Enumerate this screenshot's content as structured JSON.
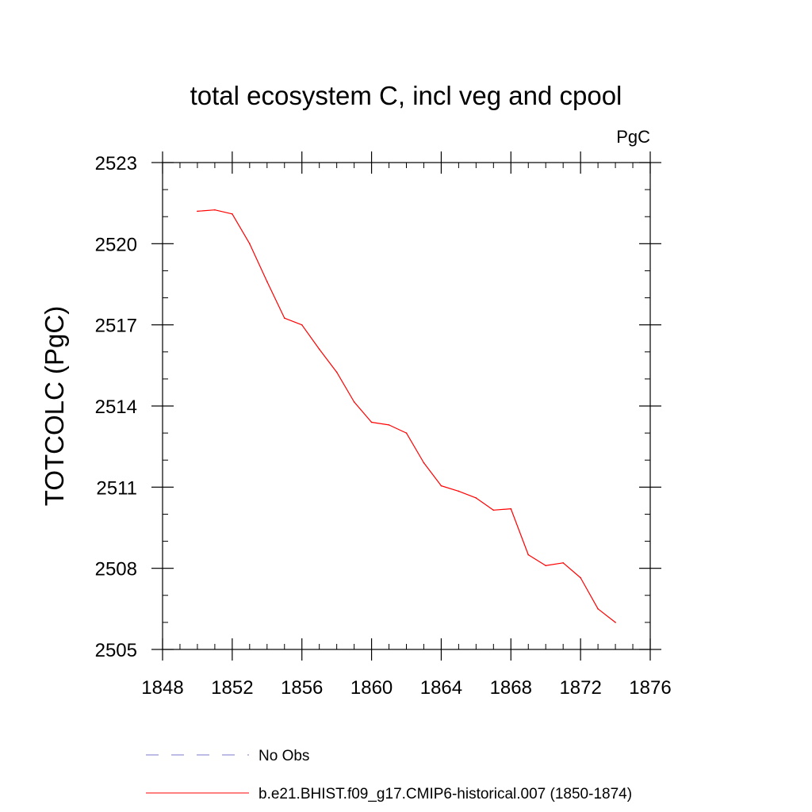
{
  "chart_data": {
    "type": "line",
    "title": "total ecosystem C, incl veg and cpool",
    "units_label": "PgC",
    "xlabel": "",
    "ylabel": "TOTCOLC  (PgC)",
    "xlim": [
      1848,
      1876
    ],
    "ylim": [
      2505,
      2523
    ],
    "x_ticks": [
      1848,
      1852,
      1856,
      1860,
      1864,
      1868,
      1872,
      1876
    ],
    "y_ticks": [
      2505,
      2508,
      2511,
      2514,
      2517,
      2520,
      2523
    ],
    "x_minor_step": 1,
    "y_minor_step": 1,
    "grid": false,
    "legend_position": "bottom",
    "series": [
      {
        "name": "b.e21.BHIST.f09_g17.CMIP6-historical.007 (1850-1874)",
        "color": "#ff0000",
        "style": "solid",
        "x": [
          1850,
          1851,
          1852,
          1853,
          1854,
          1855,
          1856,
          1857,
          1858,
          1859,
          1860,
          1861,
          1862,
          1863,
          1864,
          1865,
          1866,
          1867,
          1868,
          1869,
          1870,
          1871,
          1872,
          1873,
          1874
        ],
        "values": [
          2521.2,
          2521.25,
          2521.1,
          2520.0,
          2518.6,
          2517.25,
          2517.0,
          2516.1,
          2515.25,
          2514.15,
          2513.4,
          2513.3,
          2513.0,
          2511.9,
          2511.05,
          2510.85,
          2510.6,
          2510.15,
          2510.2,
          2508.5,
          2508.1,
          2508.2,
          2507.65,
          2506.5,
          2506.0
        ]
      }
    ],
    "legend": [
      {
        "label": "No Obs",
        "color": "#7a7acb",
        "style": "dashed"
      },
      {
        "label": "b.e21.BHIST.f09_g17.CMIP6-historical.007 (1850-1874)",
        "color": "#ff0000",
        "style": "solid"
      }
    ]
  }
}
